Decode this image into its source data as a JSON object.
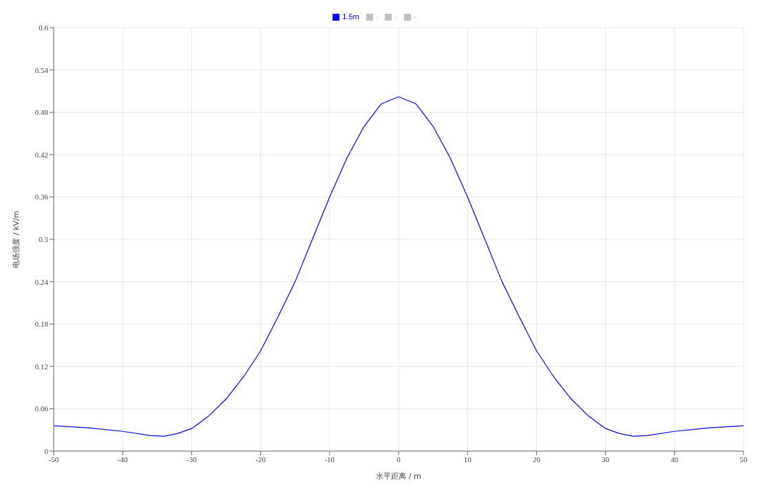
{
  "chart_data": {
    "type": "line",
    "xlabel": "水平距离 / m",
    "ylabel": "电场强度 / kV/m",
    "x": [
      -50,
      -45,
      -40,
      -36,
      -34,
      -32,
      -30,
      -27.5,
      -25,
      -22.5,
      -20,
      -17.5,
      -15,
      -12.5,
      -10,
      -7.5,
      -5,
      -2.5,
      0,
      2.5,
      5,
      7.5,
      10,
      12.5,
      15,
      17.5,
      20,
      22.5,
      25,
      27.5,
      30,
      32,
      34,
      36,
      40,
      45,
      50
    ],
    "series": [
      {
        "name": "1.5m",
        "color": "#0000ff",
        "values": [
          0.036,
          0.033,
          0.028,
          0.022,
          0.021,
          0.025,
          0.032,
          0.05,
          0.074,
          0.105,
          0.142,
          0.19,
          0.24,
          0.3,
          0.36,
          0.415,
          0.46,
          0.492,
          0.502,
          0.492,
          0.46,
          0.415,
          0.36,
          0.3,
          0.24,
          0.19,
          0.142,
          0.105,
          0.074,
          0.05,
          0.032,
          0.025,
          0.021,
          0.022,
          0.028,
          0.033,
          0.036
        ]
      },
      {
        "name": "-",
        "color": "#c0c0c0",
        "values": [
          null,
          null,
          null,
          null,
          null,
          null,
          null,
          null,
          null,
          null,
          null,
          null,
          null,
          null,
          null,
          null,
          null,
          null,
          null,
          null,
          null,
          null,
          null,
          null,
          null,
          null,
          null,
          null,
          null,
          null,
          null,
          null,
          null,
          null,
          null,
          null,
          null
        ]
      },
      {
        "name": "-",
        "color": "#c0c0c0",
        "values": [
          null,
          null,
          null,
          null,
          null,
          null,
          null,
          null,
          null,
          null,
          null,
          null,
          null,
          null,
          null,
          null,
          null,
          null,
          null,
          null,
          null,
          null,
          null,
          null,
          null,
          null,
          null,
          null,
          null,
          null,
          null,
          null,
          null,
          null,
          null,
          null,
          null
        ]
      },
      {
        "name": "-",
        "color": "#c0c0c0",
        "values": [
          null,
          null,
          null,
          null,
          null,
          null,
          null,
          null,
          null,
          null,
          null,
          null,
          null,
          null,
          null,
          null,
          null,
          null,
          null,
          null,
          null,
          null,
          null,
          null,
          null,
          null,
          null,
          null,
          null,
          null,
          null,
          null,
          null,
          null,
          null,
          null,
          null
        ]
      }
    ],
    "xlim": [
      -50,
      50
    ],
    "xticks": [
      -50,
      -40,
      -30,
      -20,
      -10,
      0,
      10,
      20,
      30,
      40,
      50
    ],
    "ylim": [
      0,
      0.6
    ],
    "yticks": [
      0,
      0.06,
      0.12,
      0.18,
      0.24,
      0.3,
      0.36,
      0.42,
      0.48,
      0.54,
      0.6
    ],
    "grid": true,
    "legend": "top",
    "marker": "none",
    "line_style": "solid"
  }
}
